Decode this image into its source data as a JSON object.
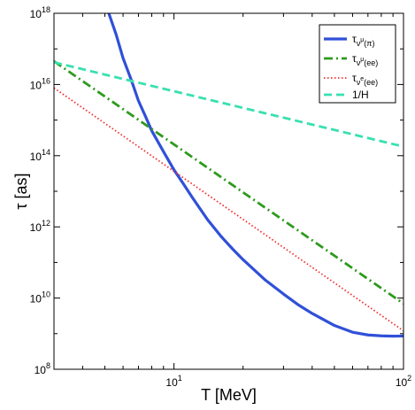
{
  "chart_data": {
    "type": "line",
    "xlabel": "T [MeV]",
    "ylabel": "τ [as]",
    "x_scale": "log",
    "y_scale": "log",
    "xlim": [
      3,
      100
    ],
    "ylim": [
      100000000.0,
      1e+18
    ],
    "x_ticks": [
      {
        "value": 10,
        "base": "10",
        "exp": "1"
      },
      {
        "value": 100,
        "base": "10",
        "exp": "2"
      }
    ],
    "y_ticks": [
      {
        "value": 100000000.0,
        "base": "10",
        "exp": "8"
      },
      {
        "value": 10000000000.0,
        "base": "10",
        "exp": "10"
      },
      {
        "value": 1000000000000.0,
        "base": "10",
        "exp": "12"
      },
      {
        "value": 100000000000000.0,
        "base": "10",
        "exp": "14"
      },
      {
        "value": 1e+16,
        "base": "10",
        "exp": "16"
      },
      {
        "value": 1e+18,
        "base": "10",
        "exp": "18"
      }
    ],
    "grid": false,
    "legend_position": "top-right",
    "series": [
      {
        "name_main": "τ",
        "name_sub": "ν",
        "name_subsub": "μ",
        "name_tail": "(π)",
        "color": "#3050d8",
        "dash": "solid",
        "width": 3.2,
        "x": [
          5.2,
          5.6,
          6.0,
          6.5,
          7.0,
          7.5,
          8,
          9,
          10,
          11,
          12,
          14,
          16,
          18,
          20,
          25,
          30,
          35,
          40,
          50,
          60,
          70,
          80,
          90,
          100
        ],
        "y": [
          1e+18,
          2.5e+17,
          5.5e+16,
          1.4e+16,
          3500000000000000.0,
          1300000000000000.0,
          500000000000000.0,
          130000000000000.0,
          40000000000000.0,
          16000000000000.0,
          6800000000000.0,
          1600000000000.0,
          550000000000.0,
          240000000000.0,
          120000000000.0,
          32000000000.0,
          13000000000.0,
          6300000000.0,
          3700000000.0,
          1700000000.0,
          1100000000.0,
          920000000.0,
          870000000.0,
          850000000.0,
          860000000.0
        ]
      },
      {
        "name_main": "τ",
        "name_sub": "ν",
        "name_subsub": "μ",
        "name_tail": "(ee)",
        "color": "#2e9a1e",
        "dash": "10,4,2,4",
        "width": 2.8,
        "x": [
          3,
          100
        ],
        "y": [
          4.5e+16,
          7000000000.0
        ]
      },
      {
        "name_main": "τ",
        "name_sub": "ν",
        "name_subsub": "e",
        "name_tail": "(ee)",
        "color": "#ee3030",
        "dash": "1.5,2.5",
        "width": 1.8,
        "x": [
          3,
          100
        ],
        "y": [
          8000000000000000.0,
          1200000000.0
        ]
      },
      {
        "name_main": "1/H",
        "name_sub": "",
        "name_subsub": "",
        "name_tail": "",
        "color": "#38e0b0",
        "dash": "9,5",
        "width": 2.8,
        "x": [
          3,
          100
        ],
        "y": [
          4.2e+16,
          180000000000000.0
        ]
      }
    ]
  }
}
